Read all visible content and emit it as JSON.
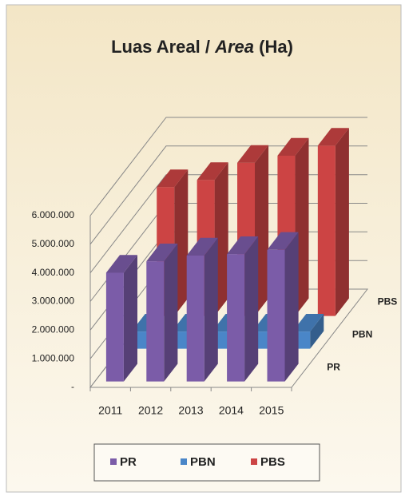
{
  "chart_data": {
    "type": "bar3d",
    "title": [
      "Luas Areal /",
      "Area",
      "(Ha)"
    ],
    "categories": [
      "2011",
      "2012",
      "2013",
      "2014",
      "2015"
    ],
    "series": [
      {
        "name": "PR",
        "color": "#7b5ca8",
        "values": [
          3800000,
          4200000,
          4400000,
          4450000,
          4600000
        ]
      },
      {
        "name": "PBN",
        "color": "#4a86c8",
        "values": [
          600000,
          600000,
          600000,
          600000,
          600000
        ]
      },
      {
        "name": "PBS",
        "color": "#cc4444",
        "values": [
          4500000,
          4750000,
          5350000,
          5600000,
          5950000
        ]
      }
    ],
    "ylim": [
      0,
      6000000
    ],
    "yticks": [
      {
        "value": 0,
        "label": "-"
      },
      {
        "value": 1000000,
        "label": "1.000.000"
      },
      {
        "value": 2000000,
        "label": "2.000.000"
      },
      {
        "value": 3000000,
        "label": "3.000.000"
      },
      {
        "value": 4000000,
        "label": "4.000.000"
      },
      {
        "value": 5000000,
        "label": "5.000.000"
      },
      {
        "value": 6000000,
        "label": "6.000.000"
      }
    ],
    "grid": true,
    "legend": "bottom"
  }
}
